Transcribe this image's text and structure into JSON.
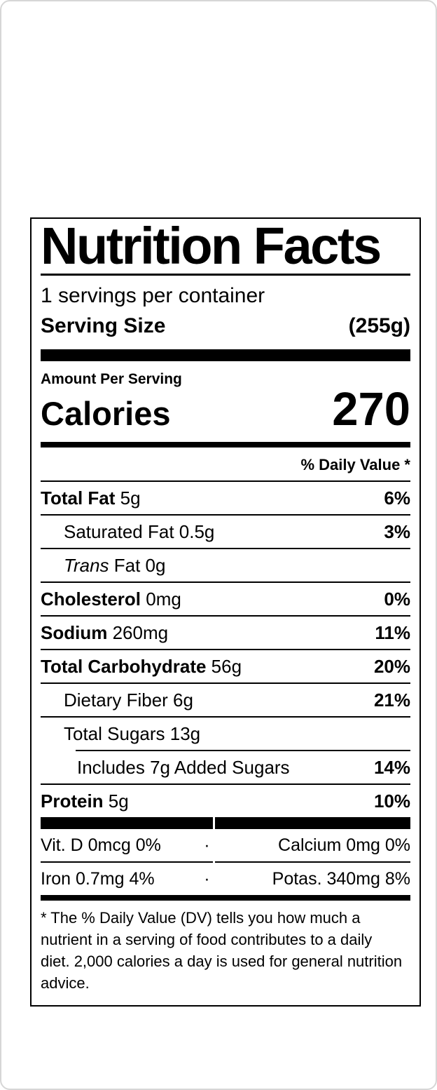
{
  "colors": {
    "label_ink": "#000000",
    "card_background": "#ffffff",
    "card_border": "#d6d6d6"
  },
  "label": {
    "title": "Nutrition Facts",
    "servings_per_container": "1 servings per container",
    "serving_size_label": "Serving Size",
    "serving_size_value": "(255g)",
    "amount_per_serving": "Amount Per Serving",
    "calories_label": "Calories",
    "calories_value": "270",
    "daily_value_header": "% Daily Value *",
    "rows": [
      {
        "parts": [
          {
            "text": "Total Fat",
            "style": "bold"
          },
          {
            "text": " 5g",
            "style": "regular"
          }
        ],
        "dv": "6%",
        "indent": 0,
        "sep_indent": false
      },
      {
        "parts": [
          {
            "text": "Saturated Fat 0.5g",
            "style": "regular"
          }
        ],
        "dv": "3%",
        "indent": 1,
        "sep_indent": false
      },
      {
        "parts": [
          {
            "text": "Trans",
            "style": "italic"
          },
          {
            "text": " Fat 0g",
            "style": "regular"
          }
        ],
        "dv": "",
        "indent": 1,
        "sep_indent": false
      },
      {
        "parts": [
          {
            "text": "Cholesterol",
            "style": "bold"
          },
          {
            "text": " 0mg",
            "style": "regular"
          }
        ],
        "dv": "0%",
        "indent": 0,
        "sep_indent": false
      },
      {
        "parts": [
          {
            "text": "Sodium",
            "style": "bold"
          },
          {
            "text": " 260mg",
            "style": "regular"
          }
        ],
        "dv": "11%",
        "indent": 0,
        "sep_indent": false
      },
      {
        "parts": [
          {
            "text": "Total Carbohydrate",
            "style": "bold"
          },
          {
            "text": " 56g",
            "style": "regular"
          }
        ],
        "dv": "20%",
        "indent": 0,
        "sep_indent": false
      },
      {
        "parts": [
          {
            "text": "Dietary Fiber 6g",
            "style": "regular"
          }
        ],
        "dv": "21%",
        "indent": 1,
        "sep_indent": false
      },
      {
        "parts": [
          {
            "text": "Total Sugars 13g",
            "style": "regular"
          }
        ],
        "dv": "",
        "indent": 1,
        "sep_indent": false
      },
      {
        "parts": [
          {
            "text": "Includes 7g Added Sugars",
            "style": "regular"
          }
        ],
        "dv": "14%",
        "indent": 2,
        "sep_indent": true
      },
      {
        "parts": [
          {
            "text": "Protein",
            "style": "bold"
          },
          {
            "text": " 5g",
            "style": "regular"
          }
        ],
        "dv": "10%",
        "indent": 0,
        "sep_indent": false
      }
    ],
    "micronutrients": [
      {
        "left": "Vit. D 0mcg 0%",
        "separator": "·",
        "right": "Calcium 0mg 0%"
      },
      {
        "left": "Iron 0.7mg 4%",
        "separator": "·",
        "right": "Potas. 340mg 8%"
      }
    ],
    "footnote": "* The % Daily Value (DV) tells you how much a\nnutrient in a serving of food contributes to a daily\ndiet. 2,000 calories a day is used for general nutrition\nadvice."
  }
}
